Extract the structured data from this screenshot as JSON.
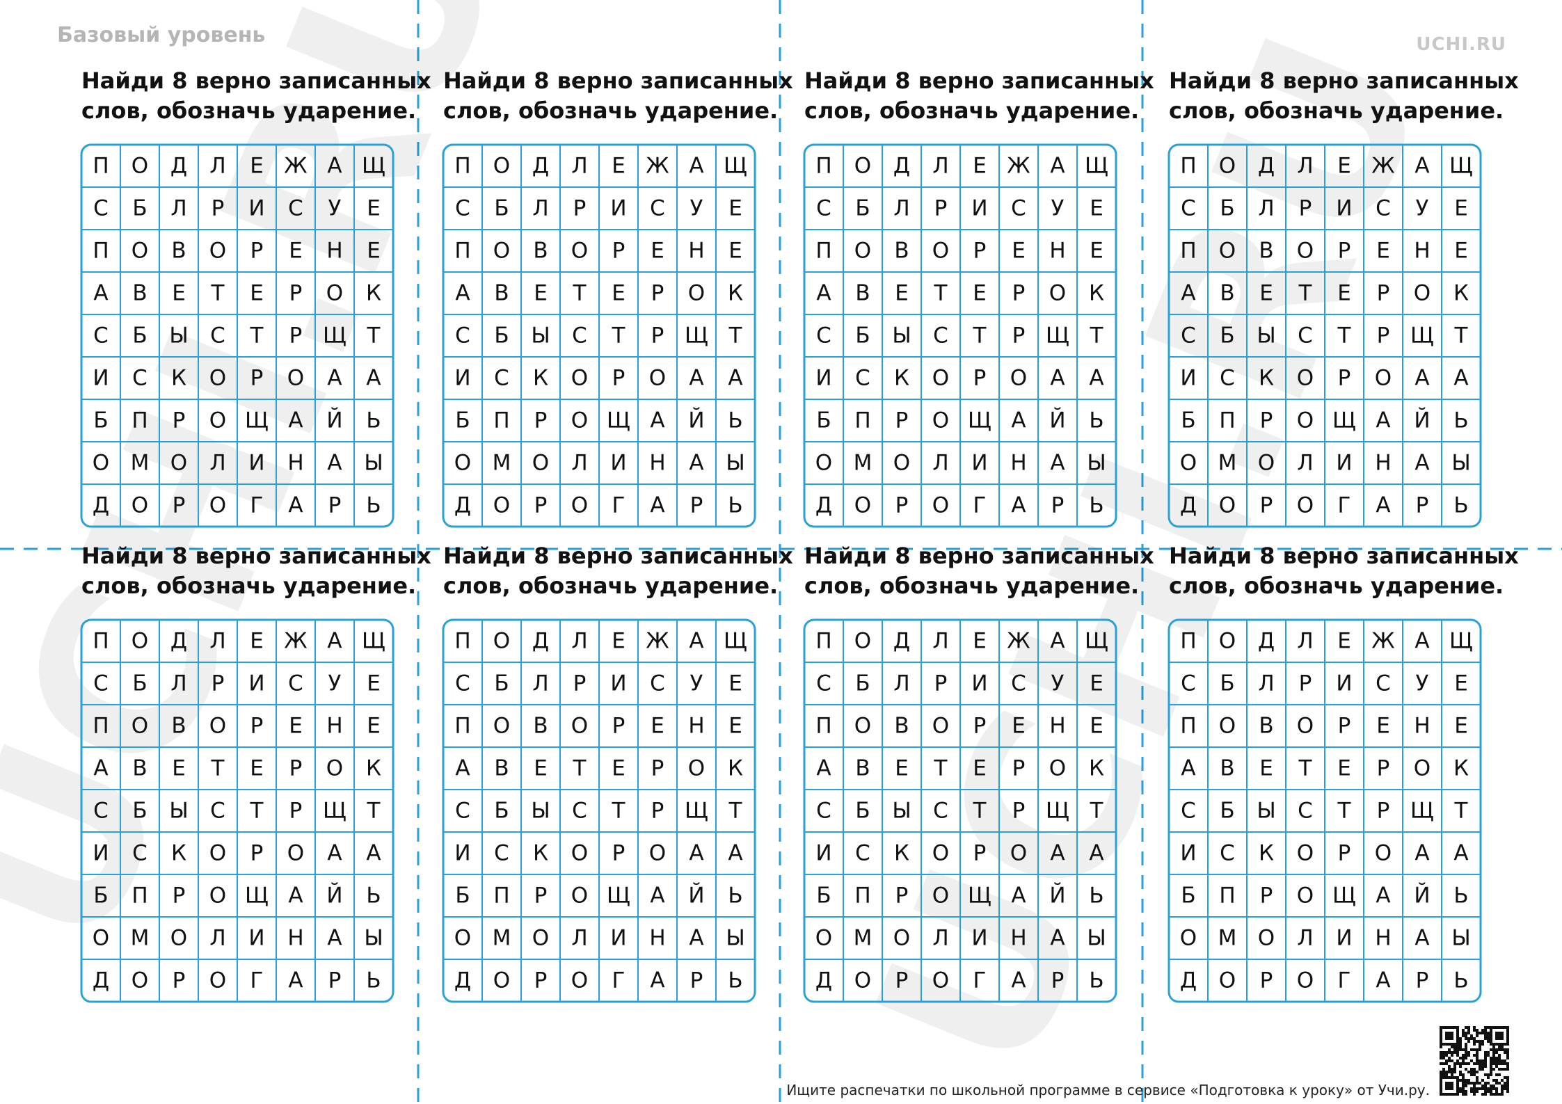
{
  "header": {
    "level": "Базовый уровень",
    "logo": "UCHI.RU"
  },
  "watermark": "UCHI.RU",
  "cards": [
    {
      "title": [
        "Найди 8 верно записанных",
        "слов, обозначь ударение."
      ],
      "grid": [
        [
          "П",
          "О",
          "Д",
          "Л",
          "Е",
          "Ж",
          "А",
          "Щ"
        ],
        [
          "С",
          "Б",
          "Л",
          "Р",
          "И",
          "С",
          "У",
          "Е"
        ],
        [
          "П",
          "О",
          "В",
          "О",
          "Р",
          "Е",
          "Н",
          "Е"
        ],
        [
          "А",
          "В",
          "Е",
          "Т",
          "Е",
          "Р",
          "О",
          "К"
        ],
        [
          "С",
          "Б",
          "Ы",
          "С",
          "Т",
          "Р",
          "Щ",
          "Т"
        ],
        [
          "И",
          "С",
          "К",
          "О",
          "Р",
          "О",
          "А",
          "А"
        ],
        [
          "Б",
          "П",
          "Р",
          "О",
          "Щ",
          "А",
          "Й",
          "Ь"
        ],
        [
          "О",
          "М",
          "О",
          "Л",
          "И",
          "Н",
          "А",
          "Ы"
        ],
        [
          "Д",
          "О",
          "Р",
          "О",
          "Г",
          "А",
          "Р",
          "Ь"
        ]
      ]
    },
    {
      "title": [
        "Найди 8 верно записанных",
        "слов, обозначь ударение."
      ],
      "grid": [
        [
          "П",
          "О",
          "Д",
          "Л",
          "Е",
          "Ж",
          "А",
          "Щ"
        ],
        [
          "С",
          "Б",
          "Л",
          "Р",
          "И",
          "С",
          "У",
          "Е"
        ],
        [
          "П",
          "О",
          "В",
          "О",
          "Р",
          "Е",
          "Н",
          "Е"
        ],
        [
          "А",
          "В",
          "Е",
          "Т",
          "Е",
          "Р",
          "О",
          "К"
        ],
        [
          "С",
          "Б",
          "Ы",
          "С",
          "Т",
          "Р",
          "Щ",
          "Т"
        ],
        [
          "И",
          "С",
          "К",
          "О",
          "Р",
          "О",
          "А",
          "А"
        ],
        [
          "Б",
          "П",
          "Р",
          "О",
          "Щ",
          "А",
          "Й",
          "Ь"
        ],
        [
          "О",
          "М",
          "О",
          "Л",
          "И",
          "Н",
          "А",
          "Ы"
        ],
        [
          "Д",
          "О",
          "Р",
          "О",
          "Г",
          "А",
          "Р",
          "Ь"
        ]
      ]
    },
    {
      "title": [
        "Найди 8 верно записанных",
        "слов, обозначь ударение."
      ],
      "grid": [
        [
          "П",
          "О",
          "Д",
          "Л",
          "Е",
          "Ж",
          "А",
          "Щ"
        ],
        [
          "С",
          "Б",
          "Л",
          "Р",
          "И",
          "С",
          "У",
          "Е"
        ],
        [
          "П",
          "О",
          "В",
          "О",
          "Р",
          "Е",
          "Н",
          "Е"
        ],
        [
          "А",
          "В",
          "Е",
          "Т",
          "Е",
          "Р",
          "О",
          "К"
        ],
        [
          "С",
          "Б",
          "Ы",
          "С",
          "Т",
          "Р",
          "Щ",
          "Т"
        ],
        [
          "И",
          "С",
          "К",
          "О",
          "Р",
          "О",
          "А",
          "А"
        ],
        [
          "Б",
          "П",
          "Р",
          "О",
          "Щ",
          "А",
          "Й",
          "Ь"
        ],
        [
          "О",
          "М",
          "О",
          "Л",
          "И",
          "Н",
          "А",
          "Ы"
        ],
        [
          "Д",
          "О",
          "Р",
          "О",
          "Г",
          "А",
          "Р",
          "Ь"
        ]
      ]
    },
    {
      "title": [
        "Найди 8 верно записанных",
        "слов, обозначь ударение."
      ],
      "grid": [
        [
          "П",
          "О",
          "Д",
          "Л",
          "Е",
          "Ж",
          "А",
          "Щ"
        ],
        [
          "С",
          "Б",
          "Л",
          "Р",
          "И",
          "С",
          "У",
          "Е"
        ],
        [
          "П",
          "О",
          "В",
          "О",
          "Р",
          "Е",
          "Н",
          "Е"
        ],
        [
          "А",
          "В",
          "Е",
          "Т",
          "Е",
          "Р",
          "О",
          "К"
        ],
        [
          "С",
          "Б",
          "Ы",
          "С",
          "Т",
          "Р",
          "Щ",
          "Т"
        ],
        [
          "И",
          "С",
          "К",
          "О",
          "Р",
          "О",
          "А",
          "А"
        ],
        [
          "Б",
          "П",
          "Р",
          "О",
          "Щ",
          "А",
          "Й",
          "Ь"
        ],
        [
          "О",
          "М",
          "О",
          "Л",
          "И",
          "Н",
          "А",
          "Ы"
        ],
        [
          "Д",
          "О",
          "Р",
          "О",
          "Г",
          "А",
          "Р",
          "Ь"
        ]
      ]
    },
    {
      "title": [
        "Найди 8 верно записанных",
        "слов, обозначь ударение."
      ],
      "grid": [
        [
          "П",
          "О",
          "Д",
          "Л",
          "Е",
          "Ж",
          "А",
          "Щ"
        ],
        [
          "С",
          "Б",
          "Л",
          "Р",
          "И",
          "С",
          "У",
          "Е"
        ],
        [
          "П",
          "О",
          "В",
          "О",
          "Р",
          "Е",
          "Н",
          "Е"
        ],
        [
          "А",
          "В",
          "Е",
          "Т",
          "Е",
          "Р",
          "О",
          "К"
        ],
        [
          "С",
          "Б",
          "Ы",
          "С",
          "Т",
          "Р",
          "Щ",
          "Т"
        ],
        [
          "И",
          "С",
          "К",
          "О",
          "Р",
          "О",
          "А",
          "А"
        ],
        [
          "Б",
          "П",
          "Р",
          "О",
          "Щ",
          "А",
          "Й",
          "Ь"
        ],
        [
          "О",
          "М",
          "О",
          "Л",
          "И",
          "Н",
          "А",
          "Ы"
        ],
        [
          "Д",
          "О",
          "Р",
          "О",
          "Г",
          "А",
          "Р",
          "Ь"
        ]
      ]
    },
    {
      "title": [
        "Найди 8 верно записанных",
        "слов, обозначь ударение."
      ],
      "grid": [
        [
          "П",
          "О",
          "Д",
          "Л",
          "Е",
          "Ж",
          "А",
          "Щ"
        ],
        [
          "С",
          "Б",
          "Л",
          "Р",
          "И",
          "С",
          "У",
          "Е"
        ],
        [
          "П",
          "О",
          "В",
          "О",
          "Р",
          "Е",
          "Н",
          "Е"
        ],
        [
          "А",
          "В",
          "Е",
          "Т",
          "Е",
          "Р",
          "О",
          "К"
        ],
        [
          "С",
          "Б",
          "Ы",
          "С",
          "Т",
          "Р",
          "Щ",
          "Т"
        ],
        [
          "И",
          "С",
          "К",
          "О",
          "Р",
          "О",
          "А",
          "А"
        ],
        [
          "Б",
          "П",
          "Р",
          "О",
          "Щ",
          "А",
          "Й",
          "Ь"
        ],
        [
          "О",
          "М",
          "О",
          "Л",
          "И",
          "Н",
          "А",
          "Ы"
        ],
        [
          "Д",
          "О",
          "Р",
          "О",
          "Г",
          "А",
          "Р",
          "Ь"
        ]
      ]
    },
    {
      "title": [
        "Найди 8 верно записанных",
        "слов, обозначь ударение."
      ],
      "grid": [
        [
          "П",
          "О",
          "Д",
          "Л",
          "Е",
          "Ж",
          "А",
          "Щ"
        ],
        [
          "С",
          "Б",
          "Л",
          "Р",
          "И",
          "С",
          "У",
          "Е"
        ],
        [
          "П",
          "О",
          "В",
          "О",
          "Р",
          "Е",
          "Н",
          "Е"
        ],
        [
          "А",
          "В",
          "Е",
          "Т",
          "Е",
          "Р",
          "О",
          "К"
        ],
        [
          "С",
          "Б",
          "Ы",
          "С",
          "Т",
          "Р",
          "Щ",
          "Т"
        ],
        [
          "И",
          "С",
          "К",
          "О",
          "Р",
          "О",
          "А",
          "А"
        ],
        [
          "Б",
          "П",
          "Р",
          "О",
          "Щ",
          "А",
          "Й",
          "Ь"
        ],
        [
          "О",
          "М",
          "О",
          "Л",
          "И",
          "Н",
          "А",
          "Ы"
        ],
        [
          "Д",
          "О",
          "Р",
          "О",
          "Г",
          "А",
          "Р",
          "Ь"
        ]
      ]
    },
    {
      "title": [
        "Найди 8 верно записанных",
        "слов, обозначь ударение."
      ],
      "grid": [
        [
          "П",
          "О",
          "Д",
          "Л",
          "Е",
          "Ж",
          "А",
          "Щ"
        ],
        [
          "С",
          "Б",
          "Л",
          "Р",
          "И",
          "С",
          "У",
          "Е"
        ],
        [
          "П",
          "О",
          "В",
          "О",
          "Р",
          "Е",
          "Н",
          "Е"
        ],
        [
          "А",
          "В",
          "Е",
          "Т",
          "Е",
          "Р",
          "О",
          "К"
        ],
        [
          "С",
          "Б",
          "Ы",
          "С",
          "Т",
          "Р",
          "Щ",
          "Т"
        ],
        [
          "И",
          "С",
          "К",
          "О",
          "Р",
          "О",
          "А",
          "А"
        ],
        [
          "Б",
          "П",
          "Р",
          "О",
          "Щ",
          "А",
          "Й",
          "Ь"
        ],
        [
          "О",
          "М",
          "О",
          "Л",
          "И",
          "Н",
          "А",
          "Ы"
        ],
        [
          "Д",
          "О",
          "Р",
          "О",
          "Г",
          "А",
          "Р",
          "Ь"
        ]
      ]
    }
  ],
  "footer": "Ищите распечатки по школьной программе в сервисе «Подготовка к уроку» от Учи.ру."
}
